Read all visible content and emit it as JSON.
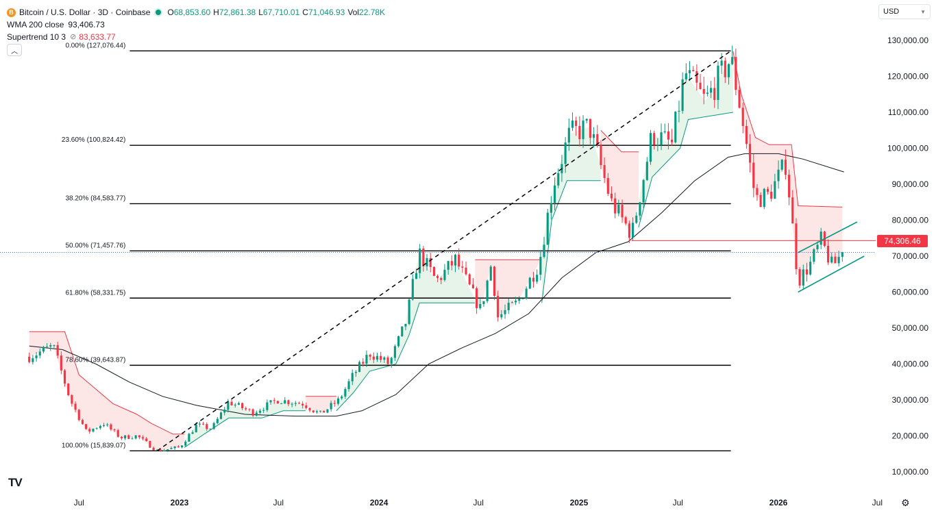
{
  "legend": {
    "symbol_icon": "B",
    "symbol": "Bitcoin / U.S. Dollar · 3D · Coinbase",
    "ohlc": {
      "o_label": "O",
      "o": "68,853.60",
      "h_label": "H",
      "h": "72,861.38",
      "l_label": "L",
      "l": "67,710.01",
      "c_label": "C",
      "c": "71,046.93",
      "vol_label": "Vol",
      "vol": "22.78K"
    },
    "wma_name": "WMA 200 close",
    "wma_value": "93,406.73",
    "supertrend_name": "Supertrend 10 3",
    "supertrend_value": "83,633.77"
  },
  "controls": {
    "currency": "USD",
    "collapse_icon": "chevron-up-icon",
    "settings_icon": "gear-icon",
    "logo": "TV"
  },
  "price_label": "74,306.46",
  "colors": {
    "up": "#089981",
    "down": "#f23645",
    "bull_fill": "#e6f4ea",
    "bear_fill": "#fde6e6",
    "wma": "#131722",
    "last_price": "#2962ff"
  },
  "chart_data": {
    "type": "candlestick",
    "title": "Bitcoin / U.S. Dollar · 3D · Coinbase",
    "y_axis": {
      "ticks": [
        10000,
        20000,
        30000,
        40000,
        50000,
        60000,
        70000,
        80000,
        90000,
        100000,
        110000,
        120000,
        130000
      ],
      "tick_labels": [
        "10,000.00",
        "20,000.00",
        "30,000.00",
        "40,000.00",
        "50,000.00",
        "60,000.00",
        "70,000.00",
        "80,000.00",
        "90,000.00",
        "100,000.00",
        "110,000.00",
        "120,000.00",
        "130,000.00"
      ],
      "range": [
        5000,
        135000
      ]
    },
    "x_axis": {
      "labels": [
        "Jul",
        "2023",
        "Jul",
        "2024",
        "Jul",
        "2025",
        "Jul",
        "2026",
        "Jul"
      ],
      "dates": [
        "2022-07-01",
        "2023-01-01",
        "2023-07-01",
        "2024-01-01",
        "2024-07-01",
        "2025-01-01",
        "2025-07-01",
        "2026-01-01",
        "2026-07-01"
      ],
      "bold": [
        false,
        true,
        false,
        true,
        false,
        true,
        false,
        true,
        false
      ]
    },
    "fibonacci": [
      {
        "label": "0.00% (127,076.44)",
        "price": 127076.44
      },
      {
        "label": "23.60% (100,824.42)",
        "price": 100824.42
      },
      {
        "label": "38.20% (84,583.77)",
        "price": 84583.77
      },
      {
        "label": "50.00% (71,457.76)",
        "price": 71457.76
      },
      {
        "label": "61.80% (58,331.75)",
        "price": 58331.75
      },
      {
        "label": "78.60% (39,643.87)",
        "price": 39643.87
      },
      {
        "label": "100.00% (15,839.07)",
        "price": 15839.07
      }
    ],
    "trend_line": {
      "start": {
        "date": "2022-11-21",
        "price": 15839.07
      },
      "end": {
        "date": "2025-10-06",
        "price": 127076.44
      }
    },
    "horizontal_level": {
      "price": 74306.46,
      "from": "2025-04-07",
      "to": "2026-07-01"
    },
    "channel": {
      "upper": [
        {
          "date": "2026-02-06",
          "price": 71000
        },
        {
          "date": "2026-05-25",
          "price": 79500
        }
      ],
      "lower": [
        {
          "date": "2026-02-06",
          "price": 60000
        },
        {
          "date": "2026-06-07",
          "price": 70000
        }
      ]
    },
    "last_close": 71046.93,
    "wma200": [
      {
        "date": "2022-04-01",
        "price": 45000
      },
      {
        "date": "2022-06-01",
        "price": 44000
      },
      {
        "date": "2022-08-01",
        "price": 40000
      },
      {
        "date": "2022-10-01",
        "price": 35000
      },
      {
        "date": "2022-12-01",
        "price": 31000
      },
      {
        "date": "2023-02-01",
        "price": 28500
      },
      {
        "date": "2023-05-01",
        "price": 26000
      },
      {
        "date": "2023-08-01",
        "price": 25500
      },
      {
        "date": "2023-10-15",
        "price": 25500
      },
      {
        "date": "2023-12-01",
        "price": 27000
      },
      {
        "date": "2024-02-01",
        "price": 31500
      },
      {
        "date": "2024-04-01",
        "price": 40000
      },
      {
        "date": "2024-06-01",
        "price": 44500
      },
      {
        "date": "2024-08-01",
        "price": 48500
      },
      {
        "date": "2024-10-01",
        "price": 54000
      },
      {
        "date": "2024-12-01",
        "price": 64000
      },
      {
        "date": "2025-02-01",
        "price": 71000
      },
      {
        "date": "2025-04-01",
        "price": 74000
      },
      {
        "date": "2025-06-01",
        "price": 82000
      },
      {
        "date": "2025-08-01",
        "price": 91000
      },
      {
        "date": "2025-10-01",
        "price": 97500
      },
      {
        "date": "2025-11-01",
        "price": 98500
      },
      {
        "date": "2026-01-01",
        "price": 98500
      },
      {
        "date": "2026-02-15",
        "price": 97000
      },
      {
        "date": "2026-05-01",
        "price": 93406.73
      }
    ],
    "price_path": [
      {
        "date": "2022-04-01",
        "price": 42000
      },
      {
        "date": "2022-05-15",
        "price": 45000
      },
      {
        "date": "2022-06-15",
        "price": 30000
      },
      {
        "date": "2022-07-15",
        "price": 21000
      },
      {
        "date": "2022-08-15",
        "price": 23500
      },
      {
        "date": "2022-09-15",
        "price": 19500
      },
      {
        "date": "2022-10-15",
        "price": 20000
      },
      {
        "date": "2022-11-21",
        "price": 15839.07
      },
      {
        "date": "2023-01-01",
        "price": 16800
      },
      {
        "date": "2023-02-01",
        "price": 23000
      },
      {
        "date": "2023-03-01",
        "price": 22000
      },
      {
        "date": "2023-04-01",
        "price": 29500
      },
      {
        "date": "2023-05-15",
        "price": 26500
      },
      {
        "date": "2023-06-30",
        "price": 30000
      },
      {
        "date": "2023-08-15",
        "price": 29000
      },
      {
        "date": "2023-09-15",
        "price": 26000
      },
      {
        "date": "2023-10-20",
        "price": 30000
      },
      {
        "date": "2023-11-15",
        "price": 37000
      },
      {
        "date": "2023-12-15",
        "price": 43000
      },
      {
        "date": "2024-01-20",
        "price": 40000
      },
      {
        "date": "2024-02-20",
        "price": 52000
      },
      {
        "date": "2024-03-14",
        "price": 71000
      },
      {
        "date": "2024-04-15",
        "price": 63000
      },
      {
        "date": "2024-05-20",
        "price": 69000
      },
      {
        "date": "2024-07-05",
        "price": 55000
      },
      {
        "date": "2024-07-25",
        "price": 68000
      },
      {
        "date": "2024-08-05",
        "price": 53000
      },
      {
        "date": "2024-09-10",
        "price": 57000
      },
      {
        "date": "2024-10-20",
        "price": 68000
      },
      {
        "date": "2024-11-15",
        "price": 90000
      },
      {
        "date": "2024-12-15",
        "price": 104000
      },
      {
        "date": "2025-01-20",
        "price": 106000
      },
      {
        "date": "2025-03-01",
        "price": 85000
      },
      {
        "date": "2025-04-08",
        "price": 76000
      },
      {
        "date": "2025-05-15",
        "price": 104000
      },
      {
        "date": "2025-06-20",
        "price": 101000
      },
      {
        "date": "2025-07-14",
        "price": 121000
      },
      {
        "date": "2025-08-20",
        "price": 113000
      },
      {
        "date": "2025-10-06",
        "price": 125000
      },
      {
        "date": "2025-10-25",
        "price": 110000
      },
      {
        "date": "2025-11-20",
        "price": 86000
      },
      {
        "date": "2025-12-15",
        "price": 87000
      },
      {
        "date": "2026-01-15",
        "price": 96000
      },
      {
        "date": "2026-02-06",
        "price": 63000
      },
      {
        "date": "2026-03-01",
        "price": 68000
      },
      {
        "date": "2026-03-20",
        "price": 74306.46
      },
      {
        "date": "2026-04-10",
        "price": 67000
      },
      {
        "date": "2026-04-28",
        "price": 71046.93
      }
    ],
    "supertrend_segments": [
      {
        "dir": "down",
        "pts": [
          {
            "date": "2022-04-01",
            "price": 49000
          },
          {
            "date": "2022-06-05",
            "price": 49000
          },
          {
            "date": "2022-07-01",
            "price": 37000
          },
          {
            "date": "2022-09-01",
            "price": 29000
          },
          {
            "date": "2022-10-15",
            "price": 26000
          },
          {
            "date": "2022-11-10",
            "price": 23500
          },
          {
            "date": "2022-12-20",
            "price": 20500
          },
          {
            "date": "2023-01-10",
            "price": 20500
          }
        ]
      },
      {
        "dir": "up",
        "pts": [
          {
            "date": "2023-01-10",
            "price": 16800
          },
          {
            "date": "2023-02-15",
            "price": 20500
          },
          {
            "date": "2023-04-01",
            "price": 25000
          },
          {
            "date": "2023-06-01",
            "price": 25000
          },
          {
            "date": "2023-07-10",
            "price": 27000
          },
          {
            "date": "2023-08-20",
            "price": 27000
          }
        ]
      },
      {
        "dir": "down",
        "pts": [
          {
            "date": "2023-08-20",
            "price": 31000
          },
          {
            "date": "2023-10-15",
            "price": 31000
          }
        ]
      },
      {
        "dir": "up",
        "pts": [
          {
            "date": "2023-10-15",
            "price": 27000
          },
          {
            "date": "2023-11-15",
            "price": 32000
          },
          {
            "date": "2023-12-15",
            "price": 38000
          },
          {
            "date": "2024-02-01",
            "price": 40000
          },
          {
            "date": "2024-02-25",
            "price": 48000
          },
          {
            "date": "2024-03-15",
            "price": 57000
          },
          {
            "date": "2024-06-25",
            "price": 57000
          }
        ]
      },
      {
        "dir": "down",
        "pts": [
          {
            "date": "2024-06-25",
            "price": 69000
          },
          {
            "date": "2024-10-25",
            "price": 69000
          }
        ]
      },
      {
        "dir": "up",
        "pts": [
          {
            "date": "2024-10-25",
            "price": 57000
          },
          {
            "date": "2024-11-12",
            "price": 80000
          },
          {
            "date": "2024-12-10",
            "price": 91000
          },
          {
            "date": "2025-02-10",
            "price": 91000
          }
        ]
      },
      {
        "dir": "down",
        "pts": [
          {
            "date": "2025-02-10",
            "price": 105000
          },
          {
            "date": "2025-03-20",
            "price": 99000
          },
          {
            "date": "2025-04-20",
            "price": 99000
          }
        ]
      },
      {
        "dir": "up",
        "pts": [
          {
            "date": "2025-04-20",
            "price": 78000
          },
          {
            "date": "2025-05-15",
            "price": 92000
          },
          {
            "date": "2025-07-05",
            "price": 100000
          },
          {
            "date": "2025-07-20",
            "price": 108000
          },
          {
            "date": "2025-10-10",
            "price": 110000
          }
        ]
      },
      {
        "dir": "down",
        "pts": [
          {
            "date": "2025-10-10",
            "price": 127000
          },
          {
            "date": "2025-10-25",
            "price": 115000
          },
          {
            "date": "2025-11-20",
            "price": 103000
          },
          {
            "date": "2025-12-15",
            "price": 101000
          },
          {
            "date": "2026-01-25",
            "price": 101000
          },
          {
            "date": "2026-02-06",
            "price": 84000
          },
          {
            "date": "2026-04-28",
            "price": 83633.77
          }
        ]
      }
    ],
    "candle_count": 230,
    "legend_entries": [
      "WMA 200 close",
      "Supertrend 10 3"
    ],
    "grid": false
  }
}
